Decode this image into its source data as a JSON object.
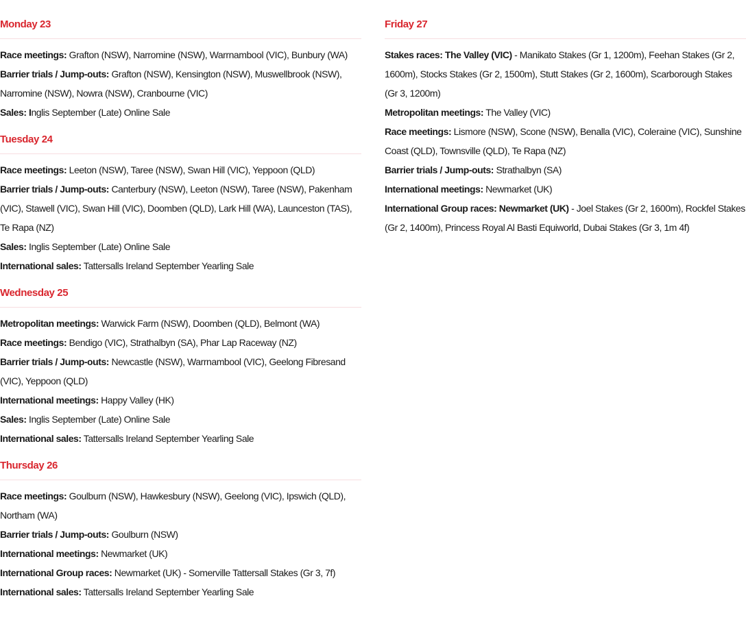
{
  "colors": {
    "heading": "#d9262e",
    "divider": "#f7dde0",
    "text": "#1a1a1a"
  },
  "days": [
    {
      "heading": "Monday 23",
      "items": [
        {
          "label": "Race meetings:",
          "text": " Grafton (NSW), Narromine (NSW), Warrnambool (VIC), Bunbury (WA)"
        },
        {
          "label": "Barrier trials / Jump-outs:",
          "text": " Grafton (NSW), Kensington (NSW), Muswellbrook (NSW), Narromine (NSW), Nowra (NSW), Cranbourne (VIC)"
        },
        {
          "label": "Sales: I",
          "text": "nglis September (Late) Online Sale"
        }
      ]
    },
    {
      "heading": "Tuesday 24",
      "items": [
        {
          "label": "Race meetings:",
          "text": " Leeton (NSW), Taree (NSW), Swan Hill (VIC), Yeppoon (QLD)"
        },
        {
          "label": "Barrier trials / Jump-outs:",
          "text": " Canterbury (NSW), Leeton (NSW), Taree (NSW), Pakenham (VIC), Stawell (VIC), Swan Hill (VIC), Doomben (QLD), Lark Hill (WA), Launceston (TAS), Te Rapa (NZ)"
        },
        {
          "label": "Sales:",
          "text": " Inglis September (Late) Online Sale"
        },
        {
          "label": "International sales:",
          "text": " Tattersalls Ireland September Yearling Sale"
        }
      ]
    },
    {
      "heading": "Wednesday 25",
      "items": [
        {
          "label": "Metropolitan meetings:",
          "text": " Warwick Farm (NSW), Doomben (QLD), Belmont (WA)"
        },
        {
          "label": "Race meetings:",
          "text": " Bendigo (VIC), Strathalbyn (SA), Phar Lap Raceway (NZ)"
        },
        {
          "label": "Barrier trials / Jump-outs:",
          "text": " Newcastle (NSW), Warrnambool (VIC), Geelong Fibresand (VIC), Yeppoon (QLD)"
        },
        {
          "label": "International meetings:",
          "text": " Happy Valley (HK)"
        },
        {
          "label": "Sales:",
          "text": " Inglis September (Late) Online Sale"
        },
        {
          "label": "International sales:",
          "text": " Tattersalls Ireland September Yearling Sale"
        }
      ]
    },
    {
      "heading": "Thursday 26",
      "items": [
        {
          "label": "Race meetings:",
          "text": " Goulburn (NSW), Hawkesbury (NSW), Geelong (VIC), Ipswich (QLD), Northam (WA)"
        },
        {
          "label": "Barrier trials / Jump-outs:",
          "text": " Goulburn (NSW)"
        },
        {
          "label": "International meetings:",
          "text": " Newmarket (UK)"
        },
        {
          "label": "International Group races:",
          "text": " Newmarket (UK) - Somerville Tattersall Stakes (Gr 3, 7f)"
        },
        {
          "label": "International sales:",
          "text": " Tattersalls Ireland September Yearling Sale"
        }
      ]
    },
    {
      "heading": "Friday 27",
      "items": [
        {
          "label": "Stakes races: The Valley (VIC)",
          "text": " - Manikato Stakes (Gr 1, 1200m), Feehan Stakes (Gr 2, 1600m), Stocks Stakes (Gr 2, 1500m), Stutt Stakes (Gr 2, 1600m), Scarborough Stakes (Gr 3, 1200m)"
        },
        {
          "label": "Metropolitan meetings:",
          "text": " The Valley (VIC)"
        },
        {
          "label": "Race meetings:",
          "text": " Lismore (NSW), Scone (NSW), Benalla (VIC), Coleraine (VIC), Sunshine Coast (QLD), Townsville (QLD), Te Rapa (NZ)"
        },
        {
          "label": "Barrier trials / Jump-outs:",
          "text": " Strathalbyn (SA)"
        },
        {
          "label": "International meetings:",
          "text": " Newmarket (UK)"
        },
        {
          "label": "International Group races: Newmarket (UK)",
          "text": " - Joel Stakes (Gr 2, 1600m), Rockfel Stakes (Gr 2, 1400m), Princess Royal Al Basti Equiworld, Dubai Stakes (Gr 3, 1m 4f)"
        }
      ]
    }
  ]
}
